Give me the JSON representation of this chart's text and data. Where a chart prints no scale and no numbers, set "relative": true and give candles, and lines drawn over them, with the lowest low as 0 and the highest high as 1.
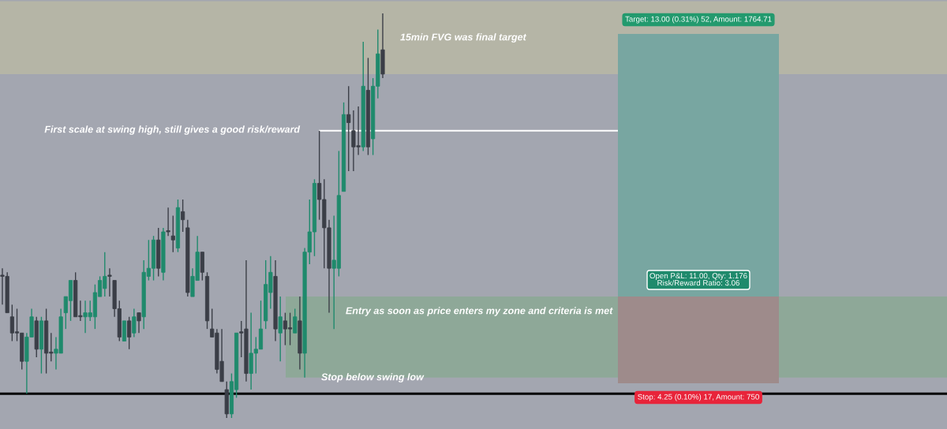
{
  "chart_data": {
    "type": "candlestick",
    "relative": true,
    "categories": [
      null,
      null,
      null,
      null,
      null,
      null,
      null,
      null,
      null,
      null,
      null,
      null,
      null,
      null,
      null,
      null,
      null,
      null,
      null,
      null,
      null,
      null,
      null,
      null,
      null,
      null,
      null,
      null,
      null,
      null,
      null,
      null,
      null,
      null,
      null,
      null,
      null,
      null,
      null,
      null,
      null,
      null,
      null,
      null,
      null,
      null,
      null,
      null,
      null,
      null,
      null,
      null,
      null,
      null,
      null,
      null,
      null,
      null,
      null,
      null,
      null,
      null,
      null,
      null,
      null,
      null,
      null,
      null,
      null,
      null,
      null,
      null,
      null,
      null,
      null,
      null,
      null,
      null,
      null
    ],
    "ohlc": [
      [
        0.35,
        0.37,
        0.28,
        0.35
      ],
      [
        0.35,
        0.36,
        0.26,
        0.26
      ],
      [
        0.25,
        0.28,
        0.19,
        0.21
      ],
      [
        0.21,
        0.27,
        0.19,
        0.21
      ],
      [
        0.21,
        0.21,
        0.12,
        0.14
      ],
      [
        0.14,
        0.21,
        0.06,
        0.2
      ],
      [
        0.2,
        0.27,
        0.2,
        0.25
      ],
      [
        0.24,
        0.25,
        0.15,
        0.17
      ],
      [
        0.17,
        0.25,
        0.11,
        0.24
      ],
      [
        0.24,
        0.27,
        0.11,
        0.16
      ],
      [
        0.16,
        0.21,
        0.14,
        0.16
      ],
      [
        0.16,
        0.2,
        0.12,
        0.17
      ],
      [
        0.16,
        0.27,
        0.16,
        0.25
      ],
      [
        0.26,
        0.3,
        0.22,
        0.3
      ],
      [
        0.29,
        0.34,
        0.24,
        0.34
      ],
      [
        0.34,
        0.36,
        0.25,
        0.25
      ],
      [
        0.25,
        0.29,
        0.24,
        0.25
      ],
      [
        0.25,
        0.29,
        0.21,
        0.26
      ],
      [
        0.25,
        0.29,
        0.24,
        0.26
      ],
      [
        0.25,
        0.33,
        0.22,
        0.31
      ],
      [
        0.3,
        0.35,
        0.3,
        0.34
      ],
      [
        0.32,
        0.41,
        0.3,
        0.35
      ],
      [
        0.35,
        0.37,
        0.3,
        0.35
      ],
      [
        0.34,
        0.34,
        0.25,
        0.27
      ],
      [
        0.27,
        0.29,
        0.19,
        0.2
      ],
      [
        0.19,
        0.24,
        0.19,
        0.24
      ],
      [
        0.24,
        0.25,
        0.17,
        0.2
      ],
      [
        0.21,
        0.27,
        0.2,
        0.25
      ],
      [
        0.26,
        0.26,
        0.21,
        0.24
      ],
      [
        0.25,
        0.39,
        0.22,
        0.36
      ],
      [
        0.35,
        0.44,
        0.34,
        0.37
      ],
      [
        0.37,
        0.45,
        0.34,
        0.44
      ],
      [
        0.44,
        0.47,
        0.35,
        0.37
      ],
      [
        0.36,
        0.47,
        0.34,
        0.46
      ],
      [
        0.46,
        0.52,
        0.45,
        0.46
      ],
      [
        0.45,
        0.5,
        0.41,
        0.44
      ],
      [
        0.42,
        0.54,
        0.41,
        0.52
      ],
      [
        0.51,
        0.54,
        0.46,
        0.49
      ],
      [
        0.47,
        0.49,
        0.3,
        0.31
      ],
      [
        0.3,
        0.37,
        0.3,
        0.35
      ],
      [
        0.34,
        0.45,
        0.34,
        0.41
      ],
      [
        0.41,
        0.41,
        0.34,
        0.36
      ],
      [
        0.35,
        0.36,
        0.22,
        0.24
      ],
      [
        0.22,
        0.27,
        0.2,
        0.2
      ],
      [
        0.21,
        0.22,
        0.11,
        0.12
      ],
      [
        0.14,
        0.22,
        0.09,
        0.09
      ],
      [
        0.07,
        0.09,
        0.0,
        0.01
      ],
      [
        0.01,
        0.11,
        0.0,
        0.09
      ],
      [
        0.07,
        0.21,
        0.05,
        0.21
      ],
      [
        0.21,
        0.24,
        0.15,
        0.21
      ],
      [
        0.22,
        0.39,
        0.09,
        0.11
      ],
      [
        0.11,
        0.26,
        0.07,
        0.16
      ],
      [
        0.16,
        0.2,
        0.11,
        0.17
      ],
      [
        0.17,
        0.29,
        0.17,
        0.22
      ],
      [
        0.24,
        0.39,
        0.22,
        0.33
      ],
      [
        0.31,
        0.4,
        0.27,
        0.36
      ],
      [
        0.35,
        0.39,
        0.19,
        0.22
      ],
      [
        0.21,
        0.3,
        0.14,
        0.25
      ],
      [
        0.24,
        0.26,
        0.18,
        0.22
      ],
      [
        0.22,
        0.26,
        0.18,
        0.22
      ],
      [
        0.21,
        0.27,
        0.21,
        0.25
      ],
      [
        0.24,
        0.3,
        0.12,
        0.16
      ],
      [
        0.16,
        0.42,
        0.1,
        0.41
      ],
      [
        0.41,
        0.54,
        0.38,
        0.46
      ],
      [
        0.46,
        0.59,
        0.4,
        0.58
      ],
      [
        0.58,
        0.71,
        0.49,
        0.54
      ],
      [
        0.54,
        0.59,
        0.37,
        0.47
      ],
      [
        0.47,
        0.49,
        0.26,
        0.37
      ],
      [
        0.37,
        0.5,
        0.22,
        0.39
      ],
      [
        0.37,
        0.66,
        0.35,
        0.55
      ],
      [
        0.56,
        0.78,
        0.56,
        0.75
      ],
      [
        0.75,
        0.82,
        0.61,
        0.73
      ],
      [
        0.71,
        0.76,
        0.61,
        0.67
      ],
      [
        0.67,
        0.77,
        0.65,
        0.67
      ],
      [
        0.67,
        0.93,
        0.66,
        0.82
      ],
      [
        0.81,
        0.89,
        0.65,
        0.67
      ],
      [
        0.69,
        0.84,
        0.65,
        0.82
      ],
      [
        0.82,
        0.96,
        0.79,
        0.9
      ],
      [
        0.91,
        1.0,
        0.84,
        0.85
      ]
    ],
    "colors": [
      "#3b3e47",
      "#3b3e47",
      "#3b3e47",
      "#3b3e47",
      "#3b3e47",
      "#1f8a6c",
      "#1f8a6c",
      "#3b3e47",
      "#1f8a6c",
      "#3b3e47",
      "#3b3e47",
      "#1f8a6c",
      "#1f8a6c",
      "#1f8a6c",
      "#1f8a6c",
      "#3b3e47",
      "#3b3e47",
      "#1f8a6c",
      "#1f8a6c",
      "#1f8a6c",
      "#1f8a6c",
      "#1f8a6c",
      "#3b3e47",
      "#3b3e47",
      "#3b3e47",
      "#1f8a6c",
      "#3b3e47",
      "#1f8a6c",
      "#3b3e47",
      "#1f8a6c",
      "#1f8a6c",
      "#1f8a6c",
      "#3b3e47",
      "#1f8a6c",
      "#3b3e47",
      "#3b3e47",
      "#1f8a6c",
      "#3b3e47",
      "#3b3e47",
      "#1f8a6c",
      "#1f8a6c",
      "#3b3e47",
      "#3b3e47",
      "#3b3e47",
      "#3b3e47",
      "#3b3e47",
      "#3b3e47",
      "#1f8a6c",
      "#1f8a6c",
      "#3b3e47",
      "#3b3e47",
      "#1f8a6c",
      "#1f8a6c",
      "#1f8a6c",
      "#1f8a6c",
      "#1f8a6c",
      "#3b3e47",
      "#1f8a6c",
      "#3b3e47",
      "#3b3e47",
      "#1f8a6c",
      "#3b3e47",
      "#1f8a6c",
      "#1f8a6c",
      "#1f8a6c",
      "#3b3e47",
      "#3b3e47",
      "#3b3e47",
      "#1f8a6c",
      "#1f8a6c",
      "#1f8a6c",
      "#3b3e47",
      "#3b3e47",
      "#3b3e47",
      "#1f8a6c",
      "#3b3e47",
      "#1f8a6c",
      "#1f8a6c",
      "#3b3e47"
    ],
    "ref_lines": [
      {
        "axis": "y",
        "value": 0.06,
        "color": "#000000"
      },
      {
        "axis": "y",
        "value": 0.71,
        "color": "#ffffff"
      }
    ],
    "bands": [
      {
        "axis": "y",
        "from": 0.85,
        "to": 1.03,
        "color": "#b5b5a6"
      },
      {
        "axis": "y",
        "from": 0.1,
        "to": 0.3,
        "color": "#8ea898"
      }
    ],
    "annotations": [
      "15min FVG was final target",
      "First scale at swing high, still gives a good risk/reward",
      "Entry as soon as price enters my zone and criteria is met",
      "Stop below swing low",
      "Target: 13.00 (0.31%) 52, Amount: 1764.71",
      "Open P&L: 11.00, Qty: 1.176\nRisk/Reward Ratio: 3.06",
      "Stop: 4.25 (0.10%) 17, Amount: 750"
    ]
  }
}
